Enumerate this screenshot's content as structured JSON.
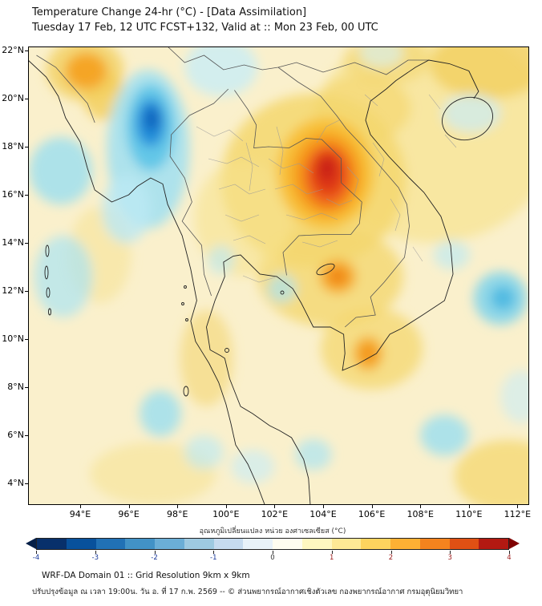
{
  "title": {
    "line1": "Temperature Change 24-hr (°C) - [Data Assimilation]",
    "line2": "Tuesday 17 Feb, 12 UTC FCST+132, Valid at :: Mon 23 Feb, 00 UTC"
  },
  "map": {
    "base_color": "#FAF0CC",
    "x_ticks": [
      "94°E",
      "96°E",
      "98°E",
      "100°E",
      "102°E",
      "104°E",
      "106°E",
      "108°E",
      "110°E",
      "112°E"
    ],
    "y_ticks": [
      "22°N",
      "20°N",
      "18°N",
      "16°N",
      "14°N",
      "12°N",
      "10°N",
      "8°N",
      "6°N",
      "4°N"
    ],
    "extent_note": "approx 92E-112.5E, 3N-22.2N",
    "blobs": [
      {
        "lon": 108.5,
        "lat": 18.5,
        "rx": 5.0,
        "ry": 4.5,
        "color": "#F6E28E",
        "opacity": 0.7
      },
      {
        "lon": 110.8,
        "lat": 21.4,
        "rx": 2.4,
        "ry": 1.4,
        "color": "#F2CE5A",
        "opacity": 0.75
      },
      {
        "lon": 106.6,
        "lat": 21.6,
        "rx": 1.8,
        "ry": 1.0,
        "color": "#F4D76F",
        "opacity": 0.6
      },
      {
        "lon": 103.6,
        "lat": 16.6,
        "rx": 3.8,
        "ry": 3.6,
        "color": "#F4D76F",
        "opacity": 0.85
      },
      {
        "lon": 105.6,
        "lat": 19.6,
        "rx": 2.0,
        "ry": 1.4,
        "color": "#F4D76F",
        "opacity": 0.7
      },
      {
        "lon": 104.3,
        "lat": 12.6,
        "rx": 3.0,
        "ry": 2.1,
        "color": "#F4D76F",
        "opacity": 0.8
      },
      {
        "lon": 106.0,
        "lat": 9.6,
        "rx": 2.1,
        "ry": 1.7,
        "color": "#F4D76F",
        "opacity": 0.75
      },
      {
        "lon": 100.7,
        "lat": 15.0,
        "rx": 2.0,
        "ry": 2.4,
        "color": "#F6E28E",
        "opacity": 0.6
      },
      {
        "lon": 99.2,
        "lat": 9.2,
        "rx": 1.1,
        "ry": 2.0,
        "color": "#F2D36A",
        "opacity": 0.55
      },
      {
        "lon": 111.6,
        "lat": 4.3,
        "rx": 2.2,
        "ry": 1.5,
        "color": "#F4D76F",
        "opacity": 0.75
      },
      {
        "lon": 97.0,
        "lat": 4.4,
        "rx": 2.6,
        "ry": 1.3,
        "color": "#F6E28E",
        "opacity": 0.55
      },
      {
        "lon": 94.8,
        "lat": 13.5,
        "rx": 1.3,
        "ry": 2.0,
        "color": "#F6E28E",
        "opacity": 0.5
      },
      {
        "lon": 95.0,
        "lat": 20.1,
        "rx": 0.9,
        "ry": 1.0,
        "color": "#F2CE5A",
        "opacity": 0.8
      },
      {
        "lon": 94.2,
        "lat": 21.2,
        "rx": 1.6,
        "ry": 1.3,
        "color": "#F2CE5A",
        "opacity": 0.75
      },
      {
        "lon": 99.8,
        "lat": 21.3,
        "rx": 1.5,
        "ry": 1.2,
        "color": "#C9EDF6",
        "opacity": 0.8
      },
      {
        "lon": 96.8,
        "lat": 17.9,
        "rx": 1.7,
        "ry": 3.3,
        "color": "#A5E1F0",
        "opacity": 0.9
      },
      {
        "lon": 96.9,
        "lat": 18.8,
        "rx": 1.0,
        "ry": 1.8,
        "color": "#5BC4E8",
        "opacity": 0.9
      },
      {
        "lon": 96.9,
        "lat": 19.0,
        "rx": 0.6,
        "ry": 1.0,
        "color": "#1E88D8",
        "opacity": 0.9
      },
      {
        "lon": 96.95,
        "lat": 19.15,
        "rx": 0.3,
        "ry": 0.5,
        "color": "#0C5BB8",
        "opacity": 0.9
      },
      {
        "lon": 95.9,
        "lat": 15.4,
        "rx": 1.0,
        "ry": 1.4,
        "color": "#BCE9F4",
        "opacity": 0.8
      },
      {
        "lon": 93.2,
        "lat": 17.0,
        "rx": 1.3,
        "ry": 1.4,
        "color": "#9ADFF0",
        "opacity": 0.8
      },
      {
        "lon": 93.3,
        "lat": 12.6,
        "rx": 1.2,
        "ry": 1.7,
        "color": "#ABE4F2",
        "opacity": 0.7
      },
      {
        "lon": 99.8,
        "lat": 13.3,
        "rx": 0.55,
        "ry": 0.6,
        "color": "#BCE9F4",
        "opacity": 0.65
      },
      {
        "lon": 102.3,
        "lat": 12.1,
        "rx": 0.6,
        "ry": 0.6,
        "color": "#ABE4F2",
        "opacity": 0.7
      },
      {
        "lon": 111.3,
        "lat": 11.7,
        "rx": 1.1,
        "ry": 1.1,
        "color": "#7FD3EC",
        "opacity": 0.85
      },
      {
        "lon": 111.4,
        "lat": 11.7,
        "rx": 0.5,
        "ry": 0.5,
        "color": "#46B6E2",
        "opacity": 0.85
      },
      {
        "lon": 109.3,
        "lat": 13.5,
        "rx": 0.75,
        "ry": 0.6,
        "color": "#BCE9F4",
        "opacity": 0.65
      },
      {
        "lon": 110.1,
        "lat": 19.4,
        "rx": 1.2,
        "ry": 0.8,
        "color": "#C9EDF6",
        "opacity": 0.7
      },
      {
        "lon": 106.4,
        "lat": 21.9,
        "rx": 0.9,
        "ry": 0.6,
        "color": "#D5F1F8",
        "opacity": 0.6
      },
      {
        "lon": 97.3,
        "lat": 6.9,
        "rx": 0.85,
        "ry": 0.95,
        "color": "#9ADFF0",
        "opacity": 0.8
      },
      {
        "lon": 99.1,
        "lat": 5.3,
        "rx": 0.8,
        "ry": 0.7,
        "color": "#BCE9F4",
        "opacity": 0.65
      },
      {
        "lon": 101.1,
        "lat": 4.7,
        "rx": 0.9,
        "ry": 0.7,
        "color": "#C9EDF6",
        "opacity": 0.65
      },
      {
        "lon": 103.6,
        "lat": 5.2,
        "rx": 0.75,
        "ry": 0.65,
        "color": "#ABE4F2",
        "opacity": 0.7
      },
      {
        "lon": 109.0,
        "lat": 6.0,
        "rx": 1.0,
        "ry": 0.85,
        "color": "#9ADFF0",
        "opacity": 0.8
      },
      {
        "lon": 112.2,
        "lat": 7.6,
        "rx": 0.9,
        "ry": 1.1,
        "color": "#C9EDF6",
        "opacity": 0.6
      },
      {
        "lon": 94.25,
        "lat": 21.15,
        "rx": 0.85,
        "ry": 0.75,
        "color": "#F5A11F",
        "opacity": 0.9
      },
      {
        "lon": 104.1,
        "lat": 16.9,
        "rx": 2.0,
        "ry": 2.3,
        "color": "#F8BE33",
        "opacity": 0.9
      },
      {
        "lon": 104.15,
        "lat": 16.85,
        "rx": 1.45,
        "ry": 1.75,
        "color": "#F59B1E",
        "opacity": 0.95
      },
      {
        "lon": 104.2,
        "lat": 16.8,
        "rx": 1.0,
        "ry": 1.3,
        "color": "#EE611E",
        "opacity": 0.95
      },
      {
        "lon": 104.2,
        "lat": 16.9,
        "rx": 0.65,
        "ry": 0.9,
        "color": "#DD3513",
        "opacity": 0.95
      },
      {
        "lon": 104.15,
        "lat": 17.1,
        "rx": 0.35,
        "ry": 0.5,
        "color": "#C62014",
        "opacity": 0.9
      },
      {
        "lon": 104.6,
        "lat": 12.6,
        "rx": 0.75,
        "ry": 0.7,
        "color": "#F6A623",
        "opacity": 0.9
      },
      {
        "lon": 104.6,
        "lat": 12.6,
        "rx": 0.4,
        "ry": 0.35,
        "color": "#F08012",
        "opacity": 0.85
      },
      {
        "lon": 105.85,
        "lat": 9.4,
        "rx": 0.6,
        "ry": 0.7,
        "color": "#F6A623",
        "opacity": 0.85
      },
      {
        "lon": 105.85,
        "lat": 9.4,
        "rx": 0.3,
        "ry": 0.35,
        "color": "#F28C12",
        "opacity": 0.8
      }
    ]
  },
  "colorbar": {
    "label": "อุณหภูมิเปลี่ยนแปลง หน่วย องศาเซลเซียส (°C)",
    "ticks": [
      "-4",
      "-3",
      "-2",
      "-1",
      "0",
      "1",
      "2",
      "3",
      "4"
    ],
    "tick_colors": [
      "#1a3a9c",
      "#1a3a9c",
      "#1a3a9c",
      "#1a3a9c",
      "#333333",
      "#9c1a1a",
      "#9c1a1a",
      "#9c1a1a",
      "#9c1a1a"
    ],
    "stops": [
      "#08306b",
      "#08519c",
      "#2171b5",
      "#4292c6",
      "#6baed6",
      "#9ecae1",
      "#c6dbef",
      "#e8f2f9",
      "#fffdf0",
      "#fff7c0",
      "#fee995",
      "#fdd35e",
      "#fdb034",
      "#f4831e",
      "#e05014",
      "#b31912"
    ],
    "arrow_left_color": "#051f47",
    "arrow_right_color": "#7f0000"
  },
  "footer": {
    "line1": "WRF-DA Domain 01 :: Grid Resolution 9km x 9km",
    "line2": "ปรับปรุงข้อมูล ณ เวลา 19:00น. วัน อ. ที่ 17 ก.พ. 2569 -- © ส่วนพยากรณ์อากาศเชิงตัวเลข กองพยากรณ์อากาศ กรมอุตุนิยมวิทยา"
  }
}
